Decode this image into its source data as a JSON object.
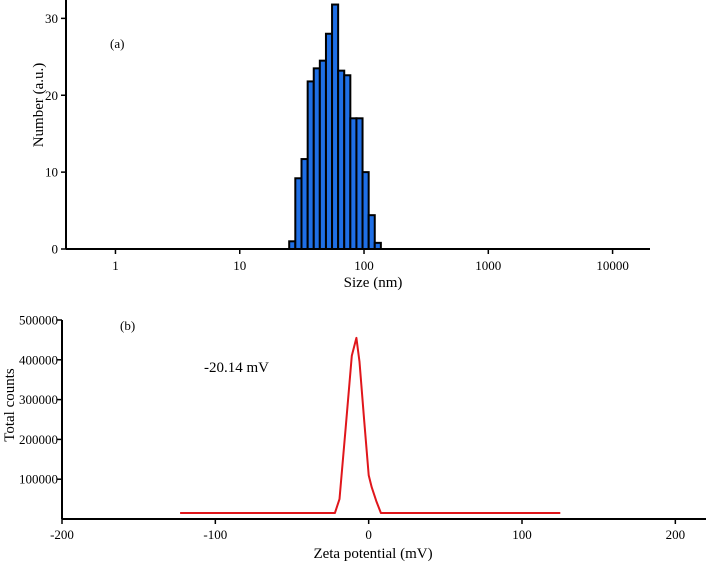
{
  "chart_data": [
    {
      "type": "bar",
      "panel_label": "(a)",
      "xlabel": "Size (nm)",
      "ylabel": "Number (a.u.)",
      "xscale": "log",
      "xlim": [
        0.4,
        20000
      ],
      "ylim": [
        0,
        32
      ],
      "xticks": [
        1,
        10,
        100,
        1000,
        10000
      ],
      "xtick_labels": [
        "1",
        "10",
        "100",
        "1000",
        "10000"
      ],
      "yticks": [
        0,
        10,
        20,
        30
      ],
      "ytick_labels": [
        "0",
        "10",
        "20",
        "30"
      ],
      "bar_color": "#1f6fe5",
      "bars": [
        {
          "x0": 25.0,
          "x1": 28.0,
          "value": 1.0
        },
        {
          "x0": 28.0,
          "x1": 31.4,
          "value": 9.2
        },
        {
          "x0": 31.4,
          "x1": 35.2,
          "value": 11.7
        },
        {
          "x0": 35.2,
          "x1": 39.4,
          "value": 21.8
        },
        {
          "x0": 39.4,
          "x1": 44.1,
          "value": 23.5
        },
        {
          "x0": 44.1,
          "x1": 49.4,
          "value": 24.5
        },
        {
          "x0": 49.4,
          "x1": 55.3,
          "value": 28.0
        },
        {
          "x0": 55.3,
          "x1": 61.9,
          "value": 31.8
        },
        {
          "x0": 61.9,
          "x1": 69.3,
          "value": 23.2
        },
        {
          "x0": 69.3,
          "x1": 77.6,
          "value": 22.6
        },
        {
          "x0": 77.6,
          "x1": 86.9,
          "value": 17.0
        },
        {
          "x0": 86.9,
          "x1": 97.3,
          "value": 17.0
        },
        {
          "x0": 97.3,
          "x1": 109.0,
          "value": 10.0
        },
        {
          "x0": 109.0,
          "x1": 122.0,
          "value": 4.4
        },
        {
          "x0": 122.0,
          "x1": 136.6,
          "value": 0.8
        }
      ]
    },
    {
      "type": "line",
      "panel_label": "(b)",
      "xlabel": "Zeta potential (mV)",
      "ylabel": "Total counts",
      "annotation": "-20.14 mV",
      "xlim": [
        -200,
        220
      ],
      "ylim": [
        0,
        500000
      ],
      "xticks": [
        -200,
        -100,
        0,
        100,
        200
      ],
      "xtick_labels": [
        "-200",
        "-100",
        "0",
        "100",
        "200"
      ],
      "yticks": [
        100000,
        200000,
        300000,
        400000,
        500000
      ],
      "ytick_labels": [
        "100000",
        "200000",
        "300000",
        "400000",
        "500000"
      ],
      "line_color": "#e0161b",
      "series": [
        {
          "x": [
            -123,
            -22,
            -19,
            -15,
            -11,
            -8,
            -6,
            -3,
            0,
            2,
            5,
            8,
            125
          ],
          "y": [
            15000,
            15000,
            50000,
            230000,
            410000,
            455000,
            395000,
            250000,
            110000,
            80000,
            45000,
            15000,
            15000
          ]
        }
      ]
    }
  ]
}
